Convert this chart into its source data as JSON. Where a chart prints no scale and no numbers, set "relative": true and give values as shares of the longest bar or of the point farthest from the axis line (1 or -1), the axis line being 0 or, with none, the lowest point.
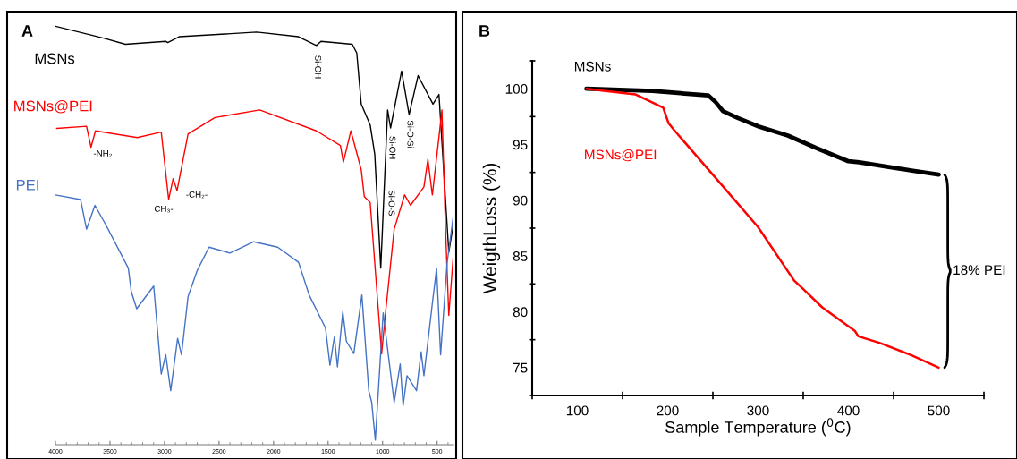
{
  "chart_data": [
    {
      "type": "line",
      "title": "A",
      "relative": true,
      "xlim": [
        4000,
        350
      ],
      "xticks": [
        4000,
        3500,
        3000,
        2500,
        2000,
        1500,
        1000,
        500
      ],
      "tick_labels": "x",
      "series": [
        {
          "name": "MSNs",
          "color": "#000000",
          "x": [
            4000,
            3551,
            3359,
            2989,
            2970,
            2866,
            2154,
            1771,
            1607,
            1565,
            1278,
            1237,
            1196,
            1114,
            1072,
            1017,
            954,
            927,
            826,
            757,
            675,
            538,
            483,
            393,
            350
          ],
          "values": [
            1.0,
            0.971,
            0.957,
            0.964,
            0.961,
            0.975,
            0.986,
            0.975,
            0.954,
            0.964,
            0.957,
            0.936,
            0.814,
            0.764,
            0.694,
            0.422,
            0.8,
            0.757,
            0.893,
            0.789,
            0.882,
            0.814,
            0.837,
            0.46,
            0.529
          ]
        },
        {
          "name": "MSNs@PEI",
          "color": "#ff0000",
          "x": [
            3989,
            3715,
            3674,
            3633,
            3250,
            3030,
            2962,
            2921,
            2885,
            2784,
            2537,
            2127,
            1607,
            1387,
            1360,
            1291,
            1196,
            1168,
            1114,
            1009,
            976,
            894,
            798,
            744,
            621,
            585,
            544,
            483,
            456,
            423,
            393,
            350
          ],
          "values": [
            0.756,
            0.761,
            0.711,
            0.75,
            0.734,
            0.747,
            0.586,
            0.636,
            0.607,
            0.743,
            0.782,
            0.8,
            0.75,
            0.715,
            0.675,
            0.75,
            0.657,
            0.593,
            0.579,
            0.217,
            0.308,
            0.515,
            0.597,
            0.572,
            0.616,
            0.682,
            0.597,
            0.736,
            0.8,
            0.515,
            0.309,
            0.458
          ]
        },
        {
          "name": "PEI",
          "color": "#4472c4",
          "x": [
            4000,
            3770,
            3715,
            3638,
            3537,
            3332,
            3304,
            3255,
            3099,
            3030,
            2989,
            2943,
            2880,
            2844,
            2784,
            2702,
            2592,
            2400,
            2182,
            1962,
            1771,
            1674,
            1524,
            1483,
            1442,
            1414,
            1365,
            1332,
            1264,
            1190,
            1127,
            1100,
            1067,
            995,
            894,
            839,
            812,
            776,
            689,
            647,
            621,
            546,
            505,
            468,
            409,
            350
          ],
          "values": [
            0.597,
            0.586,
            0.515,
            0.572,
            0.525,
            0.422,
            0.365,
            0.325,
            0.379,
            0.169,
            0.215,
            0.129,
            0.254,
            0.215,
            0.354,
            0.415,
            0.472,
            0.458,
            0.485,
            0.472,
            0.436,
            0.358,
            0.279,
            0.19,
            0.258,
            0.186,
            0.318,
            0.247,
            0.218,
            0.358,
            0.129,
            0.101,
            0.011,
            0.315,
            0.101,
            0.193,
            0.094,
            0.165,
            0.129,
            0.222,
            0.165,
            0.333,
            0.422,
            0.215,
            0.433,
            0.55
          ]
        }
      ],
      "annotations": [
        "Si-OH",
        "-NH₂",
        "CH₃-",
        "-CH₂-",
        "Si-OH",
        "Si-O-Si",
        "Si-O-Si"
      ]
    },
    {
      "type": "line",
      "title": "B",
      "xlabel": "Sample Temperature ($^{0}$C)",
      "ylabel": "WeigthLoss (%)",
      "xlim": [
        50,
        550
      ],
      "xticks": [
        100,
        200,
        300,
        400,
        500
      ],
      "ylim": [
        72.5,
        102.5
      ],
      "yticks": [
        75,
        80,
        85,
        90,
        95,
        100
      ],
      "series": [
        {
          "name": "MSNs",
          "color": "#000000",
          "x": [
            110,
            183,
            245,
            253,
            261,
            277,
            301,
            333,
            364,
            400,
            412,
            451,
            500
          ],
          "values": [
            100,
            99.8,
            99.4,
            98.8,
            98.0,
            97.4,
            96.6,
            95.8,
            94.7,
            93.5,
            93.4,
            92.9,
            92.3
          ]
        },
        {
          "name": "MSNs@PEI",
          "color": "#ff0000",
          "x": [
            110,
            164,
            195,
            201,
            207,
            252,
            300,
            340,
            348,
            371,
            395,
            407,
            411,
            435,
            470,
            500
          ],
          "values": [
            100,
            99.5,
            98.3,
            96.9,
            96.3,
            92.1,
            87.6,
            82.8,
            82.2,
            80.4,
            79.0,
            78.3,
            77.8,
            77.2,
            76.1,
            75.0
          ]
        }
      ],
      "annotations": [
        "18% PEI"
      ]
    }
  ]
}
